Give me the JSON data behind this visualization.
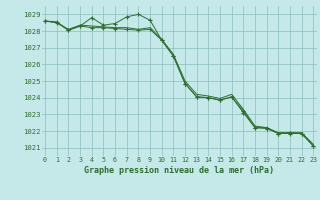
{
  "title": "Graphe pression niveau de la mer (hPa)",
  "background_color": "#c5e8e8",
  "grid_color": "#8bbcbc",
  "line_color": "#2d6e2d",
  "xlim": [
    -0.3,
    23.3
  ],
  "ylim": [
    1020.5,
    1029.5
  ],
  "yticks": [
    1021,
    1022,
    1023,
    1024,
    1025,
    1026,
    1027,
    1028,
    1029
  ],
  "xticks": [
    0,
    1,
    2,
    3,
    4,
    5,
    6,
    7,
    8,
    9,
    10,
    11,
    12,
    13,
    14,
    15,
    16,
    17,
    18,
    19,
    20,
    21,
    22,
    23
  ],
  "series": [
    {
      "x": [
        0,
        1,
        2,
        3,
        4,
        5,
        6,
        7,
        8,
        9,
        10,
        11,
        12,
        13,
        14,
        15,
        16,
        17,
        18,
        19,
        20,
        21,
        22,
        23
      ],
      "y": [
        1028.6,
        1028.55,
        1028.05,
        1028.3,
        1028.8,
        1028.35,
        1028.45,
        1028.85,
        1029.0,
        1028.65,
        1027.45,
        1026.5,
        1024.85,
        1024.05,
        1024.0,
        1023.85,
        1024.05,
        1023.1,
        1022.2,
        1022.15,
        1021.85,
        1021.9,
        1021.85,
        1021.1
      ],
      "marker": "+"
    },
    {
      "x": [
        0,
        1,
        2,
        3,
        4,
        5,
        6,
        7,
        8,
        9,
        10,
        11,
        12,
        13,
        14,
        15,
        16,
        17,
        18,
        19,
        20,
        21,
        22,
        23
      ],
      "y": [
        1028.6,
        1028.5,
        1028.05,
        1028.3,
        1028.2,
        1028.2,
        1028.15,
        1028.1,
        1028.05,
        1028.1,
        1027.45,
        1026.5,
        1024.85,
        1024.05,
        1024.0,
        1023.85,
        1024.05,
        1023.2,
        1022.2,
        1022.2,
        1021.85,
        1021.85,
        1021.85,
        1021.1
      ],
      "marker": "+"
    },
    {
      "x": [
        0,
        1,
        2,
        3,
        4,
        5,
        6,
        7,
        8,
        9,
        10,
        11,
        12,
        13,
        14,
        15,
        16,
        17,
        18,
        19,
        20,
        21,
        22,
        23
      ],
      "y": [
        1028.6,
        1028.5,
        1028.1,
        1028.35,
        1028.3,
        1028.25,
        1028.2,
        1028.2,
        1028.1,
        1028.2,
        1027.5,
        1026.6,
        1025.0,
        1024.2,
        1024.1,
        1023.95,
        1024.2,
        1023.3,
        1022.3,
        1022.2,
        1021.9,
        1021.9,
        1021.9,
        1021.2
      ],
      "marker": null
    }
  ]
}
